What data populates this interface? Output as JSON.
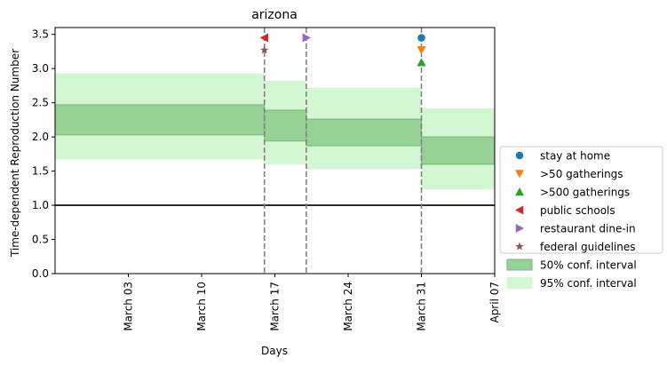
{
  "chart_data": {
    "type": "area",
    "title": "arizona",
    "xlabel": "Days",
    "ylabel": "Time-dependent Reproduction Number",
    "xlim": [
      "2020-02-25",
      "2020-04-07"
    ],
    "ylim": [
      0,
      3.6
    ],
    "xticks": [
      {
        "date": "2020-03-03",
        "label": "March 03"
      },
      {
        "date": "2020-03-10",
        "label": "March 10"
      },
      {
        "date": "2020-03-17",
        "label": "March 17"
      },
      {
        "date": "2020-03-24",
        "label": "March 24"
      },
      {
        "date": "2020-03-31",
        "label": "March 31"
      },
      {
        "date": "2020-04-07",
        "label": "April 07"
      }
    ],
    "yticks": [
      0.0,
      0.5,
      1.0,
      1.5,
      2.0,
      2.5,
      3.0,
      3.5
    ],
    "ytick_labels": [
      "0.0",
      "0.5",
      "1.0",
      "1.5",
      "2.0",
      "2.5",
      "3.0",
      "3.5"
    ],
    "reference_line": 1.0,
    "segments": [
      {
        "start": "2020-02-25",
        "end": "2020-03-16",
        "ci50": [
          2.03,
          2.47
        ],
        "ci95": [
          1.67,
          2.93
        ]
      },
      {
        "start": "2020-03-16",
        "end": "2020-03-20",
        "ci50": [
          1.94,
          2.39
        ],
        "ci95": [
          1.6,
          2.82
        ]
      },
      {
        "start": "2020-03-20",
        "end": "2020-03-31",
        "ci50": [
          1.87,
          2.26
        ],
        "ci95": [
          1.53,
          2.72
        ]
      },
      {
        "start": "2020-03-31",
        "end": "2020-04-07",
        "ci50": [
          1.6,
          2.0
        ],
        "ci95": [
          1.23,
          2.42
        ]
      }
    ],
    "intervention_lines": [
      "2020-03-16",
      "2020-03-20",
      "2020-03-31"
    ],
    "interventions": [
      {
        "name": "stay at home",
        "date": "2020-03-31",
        "y": 3.45,
        "marker": "circle",
        "color": "#1f77b4"
      },
      {
        "name": ">50 gatherings",
        "date": "2020-03-31",
        "y": 3.27,
        "marker": "triangle-down",
        "color": "#ff7f0e"
      },
      {
        "name": ">500 gatherings",
        "date": "2020-03-31",
        "y": 3.09,
        "marker": "triangle-up",
        "color": "#2ca02c"
      },
      {
        "name": "public schools",
        "date": "2020-03-16",
        "y": 3.45,
        "marker": "triangle-left",
        "color": "#d62728"
      },
      {
        "name": "restaurant dine-in",
        "date": "2020-03-20",
        "y": 3.45,
        "marker": "triangle-right",
        "color": "#9467bd"
      },
      {
        "name": "federal guidelines",
        "date": "2020-03-16",
        "y": 3.27,
        "marker": "star",
        "color": "#8c564b"
      }
    ],
    "legend_position": "right",
    "legend": [
      {
        "label": "stay at home",
        "kind": "marker",
        "marker": "circle",
        "color": "#1f77b4"
      },
      {
        "label": ">50 gatherings",
        "kind": "marker",
        "marker": "triangle-down",
        "color": "#ff7f0e"
      },
      {
        "label": ">500 gatherings",
        "kind": "marker",
        "marker": "triangle-up",
        "color": "#2ca02c"
      },
      {
        "label": "public schools",
        "kind": "marker",
        "marker": "triangle-left",
        "color": "#d62728"
      },
      {
        "label": "restaurant dine-in",
        "kind": "marker",
        "marker": "triangle-right",
        "color": "#9467bd"
      },
      {
        "label": "federal guidelines",
        "kind": "marker",
        "marker": "star",
        "color": "#8c564b"
      },
      {
        "label": "50% conf. interval",
        "kind": "patch",
        "color": "#96d196",
        "edge": "#74b874"
      },
      {
        "label": "95% conf. interval",
        "kind": "patch",
        "color": "#d2f7d2",
        "edge": "#d2f7d2"
      }
    ],
    "colors": {
      "ci50": "#96d196",
      "ci50_edge": "#74b874",
      "ci95": "#d2f7d2",
      "intervention_line": "#808080",
      "reference_line": "#000000"
    }
  }
}
